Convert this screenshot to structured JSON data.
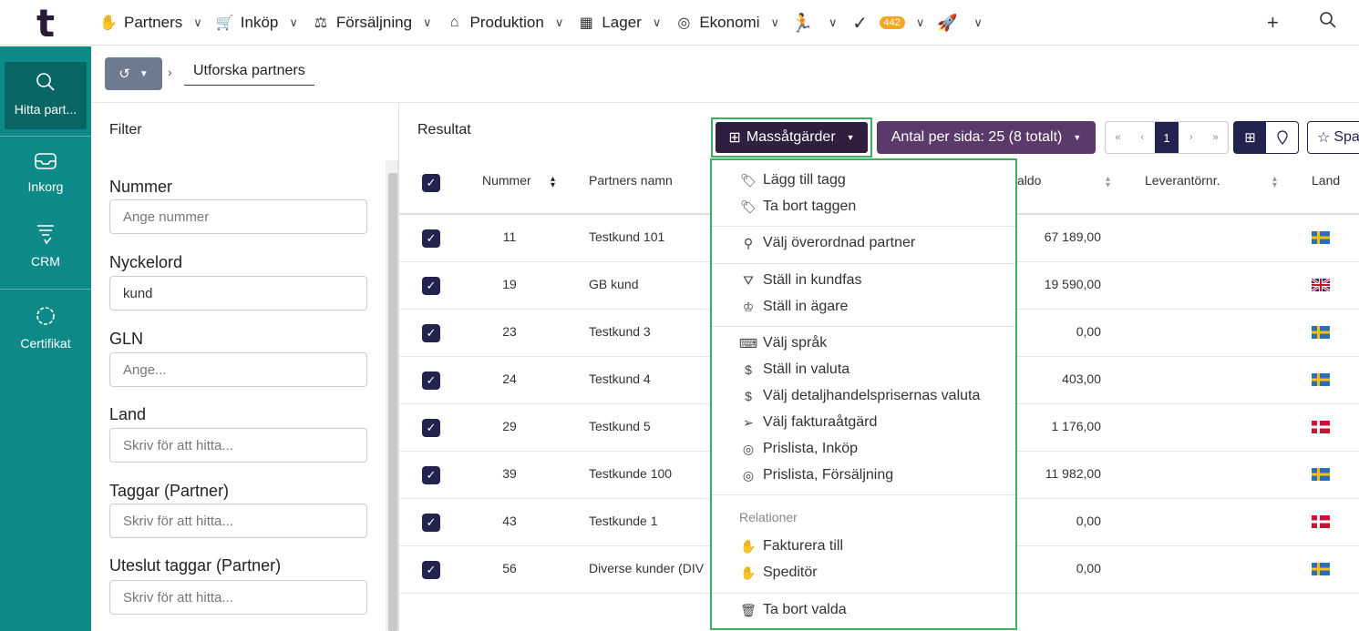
{
  "app": {
    "logo": "t"
  },
  "nav": {
    "items": [
      {
        "label": "Partners"
      },
      {
        "label": "Inköp"
      },
      {
        "label": "Försäljning"
      },
      {
        "label": "Produktion"
      },
      {
        "label": "Lager"
      },
      {
        "label": "Ekonomi"
      }
    ],
    "tasks_badge": "442"
  },
  "rail": {
    "items": [
      {
        "label": "Hitta part..."
      },
      {
        "label": "Inkorg"
      },
      {
        "label": "CRM"
      },
      {
        "label": "Certifikat"
      }
    ]
  },
  "breadcrumb": {
    "current": "Utforska partners"
  },
  "filter": {
    "title": "Filter",
    "fields": [
      {
        "label": "Nummer",
        "value": "",
        "placeholder": "Ange nummer"
      },
      {
        "label": "Nyckelord",
        "value": "kund",
        "placeholder": ""
      },
      {
        "label": "GLN",
        "value": "",
        "placeholder": "Ange..."
      },
      {
        "label": "Land",
        "value": "",
        "placeholder": "Skriv för att hitta..."
      },
      {
        "label": "Taggar (Partner)",
        "value": "",
        "placeholder": "Skriv för att hitta..."
      },
      {
        "label": "Uteslut taggar (Partner)",
        "value": "",
        "placeholder": "Skriv för att hitta..."
      }
    ]
  },
  "results": {
    "title": "Resultat",
    "mass_actions_label": "Massåtgärder",
    "per_page_label": "Antal per sida: 25 (8 totalt)",
    "pager": {
      "first": "«",
      "prev": "‹",
      "current": "1",
      "next": "›",
      "last": "»"
    },
    "save_label": "Spa",
    "columns": {
      "number": "Nummer",
      "name": "Partners namn",
      "balance": "aldo",
      "supplier_no": "Leverantörnr.",
      "country": "Land"
    },
    "rows": [
      {
        "number": "11",
        "name": "Testkund 101",
        "balance": "67 189,00",
        "flag": "se"
      },
      {
        "number": "19",
        "name": "GB kund",
        "balance": "19 590,00",
        "flag": "gb"
      },
      {
        "number": "23",
        "name": "Testkund 3",
        "balance": "0,00",
        "flag": "se"
      },
      {
        "number": "24",
        "name": "Testkund 4",
        "balance": "403,00",
        "flag": "se"
      },
      {
        "number": "29",
        "name": "Testkund 5",
        "balance": "1 176,00",
        "flag": "dk"
      },
      {
        "number": "39",
        "name": "Testkunde 100",
        "balance": "11 982,00",
        "flag": "se"
      },
      {
        "number": "43",
        "name": "Testkunde 1",
        "balance": "0,00",
        "flag": "dk"
      },
      {
        "number": "56",
        "name": "Diverse kunder (DIV",
        "balance": "0,00",
        "flag": "se"
      }
    ]
  },
  "mass_menu": {
    "add_tag": "Lägg till tagg",
    "remove_tag": "Ta bort taggen",
    "parent": "Välj överordnad partner",
    "phase": "Ställ in kundfas",
    "owner": "Ställ in ägare",
    "language": "Välj språk",
    "currency": "Ställ in valuta",
    "retail_currency": "Välj detaljhandelsprisernas valuta",
    "invoice_action": "Välj fakturaåtgärd",
    "pricelist_purchase": "Prislista, Inköp",
    "pricelist_sales": "Prislista, Försäljning",
    "relations_header": "Relationer",
    "invoice_to": "Fakturera till",
    "forwarder": "Speditör",
    "delete": "Ta bort valda"
  },
  "colors": {
    "rail": "#0d8a87",
    "primary": "#2f1e3e",
    "accent": "#3fae5f",
    "badge": "#f5a623"
  }
}
